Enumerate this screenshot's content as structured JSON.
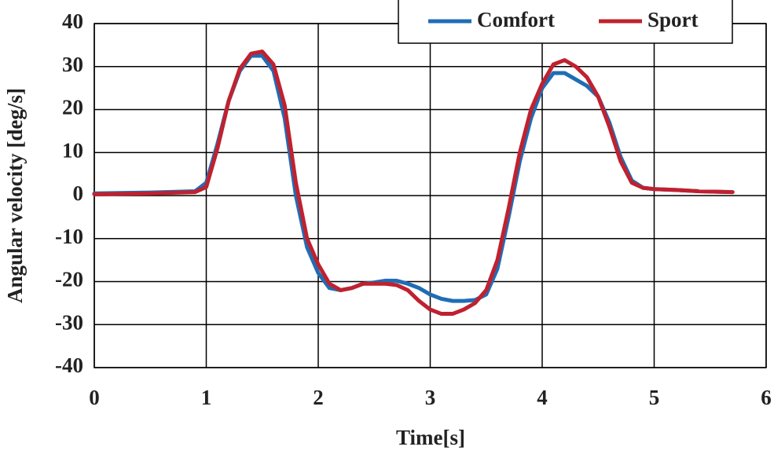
{
  "chart_data": {
    "type": "line",
    "x_label": "Time[s]",
    "y_label": "Angular velocity [deg/s]",
    "x": [
      0,
      0.5,
      0.9,
      1.0,
      1.1,
      1.2,
      1.3,
      1.4,
      1.5,
      1.6,
      1.7,
      1.8,
      1.9,
      2.0,
      2.1,
      2.2,
      2.3,
      2.4,
      2.5,
      2.6,
      2.7,
      2.8,
      2.9,
      3.0,
      3.1,
      3.2,
      3.3,
      3.4,
      3.5,
      3.6,
      3.7,
      3.8,
      3.9,
      4.0,
      4.1,
      4.2,
      4.3,
      4.4,
      4.5,
      4.6,
      4.7,
      4.8,
      4.9,
      5.0,
      5.2,
      5.4,
      5.7
    ],
    "series": [
      {
        "name": "Comfort",
        "color": "#1f6db5",
        "values": [
          0.5,
          0.7,
          1,
          3,
          12,
          22,
          29,
          32.5,
          32.5,
          29,
          18,
          0,
          -12,
          -18,
          -21.5,
          -22,
          -21.5,
          -20.5,
          -20.2,
          -19.8,
          -19.8,
          -20.5,
          -21.5,
          -23,
          -24,
          -24.5,
          -24.5,
          -24.3,
          -23,
          -17,
          -5,
          8,
          18,
          25,
          28.5,
          28.5,
          27,
          25.5,
          23,
          17,
          9,
          3.5,
          1.8,
          1.5,
          1.3,
          1,
          0.8
        ]
      },
      {
        "name": "Sport",
        "color": "#c0212f",
        "values": [
          0.3,
          0.5,
          0.8,
          2,
          11,
          22,
          29.5,
          33,
          33.5,
          30.5,
          21,
          3,
          -10,
          -16,
          -20.5,
          -22,
          -21.5,
          -20.5,
          -20.5,
          -20.5,
          -20.8,
          -22,
          -24.5,
          -26.5,
          -27.5,
          -27.5,
          -26.5,
          -25,
          -22,
          -15,
          -3,
          10,
          20,
          26,
          30.5,
          31.5,
          30,
          27.5,
          23,
          16,
          8,
          3,
          1.8,
          1.5,
          1.3,
          1,
          0.8
        ]
      }
    ],
    "xlim": [
      0,
      6
    ],
    "xticks": [
      0,
      1,
      2,
      3,
      4,
      5,
      6
    ],
    "ylim": [
      -40,
      40
    ],
    "yticks": [
      -40,
      -30,
      -20,
      -10,
      0,
      10,
      20,
      30,
      40
    ],
    "grid": true,
    "legend": "top-right"
  }
}
